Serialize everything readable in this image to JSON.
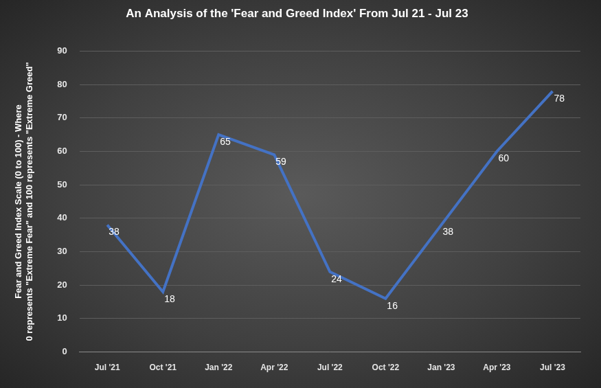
{
  "chart_data": {
    "type": "line",
    "title": "An Analysis of the 'Fear and Greed Index' From Jul 21 - Jul 23",
    "y_label": [
      "Fear and Greed Index Scale (0 to 100) - Where",
      "0 represents \"Extreme Fear\" and 100 represents \"Extreme Greed\""
    ],
    "categories": [
      "Jul '21",
      "Oct '21",
      "Jan '22",
      "Apr '22",
      "Jul '22",
      "Oct '22",
      "Jan '23",
      "Apr '23",
      "Jul '23"
    ],
    "values": [
      38,
      18,
      65,
      59,
      24,
      16,
      38,
      60,
      78
    ],
    "color": "#4472c4",
    "ylim": [
      0,
      90
    ],
    "yticks": [
      0,
      10,
      20,
      30,
      40,
      50,
      60,
      70,
      80,
      90
    ],
    "grid": true,
    "data_labels": true
  }
}
